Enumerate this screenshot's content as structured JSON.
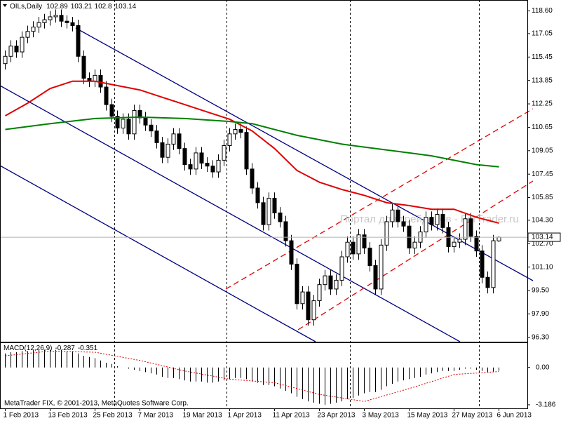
{
  "chart_data": [
    {
      "type": "candlestick",
      "symbol": "OILs,Daily",
      "categories": [
        "1 Feb 2013",
        null,
        null,
        null,
        null,
        null,
        null,
        null,
        "13 Feb 2013",
        null,
        null,
        null,
        null,
        null,
        null,
        null,
        "25 Feb 2013",
        null,
        null,
        null,
        null,
        null,
        null,
        null,
        "7 Mar 2013",
        null,
        null,
        null,
        null,
        null,
        null,
        null,
        "19 Mar 2013",
        null,
        null,
        null,
        null,
        null,
        null,
        null,
        "1 Apr 2013",
        null,
        null,
        null,
        null,
        null,
        null,
        null,
        "11 Apr 2013",
        null,
        null,
        null,
        null,
        null,
        null,
        null,
        "23 Apr 2013",
        null,
        null,
        null,
        null,
        null,
        null,
        null,
        "3 May 2013",
        null,
        null,
        null,
        null,
        null,
        null,
        null,
        "15 May 2013",
        null,
        null,
        null,
        null,
        null,
        null,
        null,
        "27 May 2013",
        null,
        null,
        null,
        null,
        null,
        null,
        null,
        "6 Jun 2013"
      ],
      "open": [
        115.0,
        115.5,
        116.2,
        115.8,
        116.8,
        117.2,
        117.5,
        117.8,
        118.0,
        118.2,
        118.3,
        117.9,
        117.8,
        117.6,
        115.5,
        114.0,
        113.8,
        114.2,
        113.4,
        112.2,
        111.4,
        110.6,
        111.2,
        110.2,
        111.8,
        111.3,
        110.8,
        110.4,
        109.6,
        108.6,
        109.5,
        110.2,
        109.2,
        108.1,
        107.8,
        108.9,
        108.2,
        108.0,
        107.6,
        108.4,
        109.4,
        110.2,
        110.5,
        110.3,
        107.8,
        106.5,
        105.5,
        104.0,
        105.8,
        104.8,
        104.2,
        102.9,
        101.3,
        98.6,
        99.4,
        97.5,
        98.8,
        99.9,
        100.5,
        99.6,
        100.2,
        101.8,
        102.8,
        102.0,
        103.3,
        102.4,
        101.2,
        99.6,
        102.6,
        104.2,
        105.0,
        104.2,
        103.9,
        102.4,
        102.8,
        103.5,
        104.5,
        104.0,
        104.7,
        103.8,
        102.5,
        102.8,
        103.0,
        104.4,
        103.2,
        102.2,
        100.4,
        99.7,
        102.89
      ],
      "high": [
        115.9,
        116.6,
        116.6,
        117.2,
        117.6,
        117.9,
        118.2,
        118.4,
        118.6,
        118.7,
        118.7,
        118.3,
        118.2,
        118.0,
        115.9,
        114.4,
        114.6,
        114.6,
        113.8,
        112.6,
        111.8,
        111.6,
        111.6,
        112.2,
        112.2,
        111.7,
        111.2,
        110.8,
        110.0,
        109.9,
        110.6,
        110.6,
        109.6,
        108.5,
        109.3,
        109.3,
        108.6,
        108.4,
        108.8,
        109.8,
        110.6,
        110.9,
        110.9,
        110.7,
        108.2,
        106.9,
        105.9,
        106.2,
        106.2,
        105.2,
        104.6,
        103.3,
        101.7,
        99.8,
        99.8,
        99.2,
        100.3,
        100.9,
        100.9,
        100.6,
        102.2,
        103.2,
        103.2,
        103.7,
        103.7,
        102.8,
        101.6,
        103.0,
        104.6,
        105.4,
        105.4,
        104.6,
        104.3,
        103.2,
        103.9,
        104.9,
        104.9,
        105.1,
        105.1,
        104.2,
        103.2,
        103.4,
        104.8,
        104.8,
        103.6,
        102.6,
        100.8,
        103.3,
        103.21
      ],
      "low": [
        114.6,
        115.1,
        115.4,
        115.4,
        116.4,
        116.8,
        117.1,
        117.4,
        117.6,
        117.8,
        117.5,
        117.4,
        117.2,
        115.1,
        113.6,
        113.4,
        113.4,
        113.0,
        111.8,
        111.0,
        110.2,
        110.2,
        109.8,
        109.8,
        110.9,
        110.4,
        110.0,
        109.2,
        108.2,
        108.2,
        109.1,
        108.8,
        107.7,
        107.4,
        107.4,
        107.8,
        107.6,
        107.2,
        107.2,
        108.0,
        109.0,
        109.8,
        109.9,
        107.4,
        106.1,
        105.1,
        103.6,
        103.6,
        104.4,
        103.8,
        102.5,
        100.9,
        98.2,
        98.2,
        97.1,
        97.1,
        98.4,
        99.5,
        99.2,
        99.2,
        99.8,
        101.4,
        101.6,
        101.6,
        102.0,
        100.8,
        99.2,
        99.2,
        102.2,
        103.8,
        103.8,
        103.5,
        102.0,
        102.0,
        102.4,
        103.1,
        103.6,
        103.6,
        103.4,
        102.1,
        102.1,
        102.4,
        102.6,
        102.8,
        101.8,
        100.0,
        99.3,
        99.3,
        102.8
      ],
      "close": [
        115.5,
        116.2,
        115.8,
        116.8,
        117.2,
        117.5,
        117.8,
        118.0,
        118.2,
        118.3,
        117.9,
        117.8,
        117.6,
        115.5,
        114.0,
        113.8,
        114.2,
        113.4,
        112.2,
        111.4,
        110.6,
        111.2,
        110.2,
        111.8,
        111.3,
        110.8,
        110.4,
        109.6,
        108.6,
        109.5,
        110.2,
        109.2,
        108.1,
        107.8,
        108.9,
        108.2,
        108.0,
        107.6,
        108.4,
        109.4,
        110.2,
        110.5,
        110.3,
        107.8,
        106.5,
        105.5,
        104.0,
        105.8,
        104.8,
        104.2,
        102.9,
        101.3,
        98.6,
        99.4,
        97.5,
        98.8,
        99.9,
        100.5,
        99.6,
        100.2,
        101.8,
        102.8,
        102.0,
        103.3,
        102.4,
        101.2,
        99.6,
        102.6,
        104.2,
        105.0,
        104.2,
        103.9,
        102.4,
        102.8,
        103.5,
        104.5,
        104.0,
        104.7,
        103.8,
        102.5,
        102.8,
        103.0,
        104.4,
        103.2,
        102.2,
        100.4,
        99.7,
        102.9,
        103.14
      ],
      "ylim": [
        96.0,
        119.3
      ],
      "yticks": [
        {
          "value": 118.6,
          "label": "118.60"
        },
        {
          "value": 117.05,
          "label": "117.05"
        },
        {
          "value": 115.45,
          "label": "115.45"
        },
        {
          "value": 113.85,
          "label": "113.85"
        },
        {
          "value": 112.25,
          "label": "112.25"
        },
        {
          "value": 110.65,
          "label": "110.65"
        },
        {
          "value": 109.05,
          "label": "109.05"
        },
        {
          "value": 107.45,
          "label": "107.45"
        },
        {
          "value": 105.85,
          "label": "105.85"
        },
        {
          "value": 104.3,
          "label": "104.30"
        },
        {
          "value": 102.7,
          "label": "102.70"
        },
        {
          "value": 101.1,
          "label": "101.10"
        },
        {
          "value": 99.5,
          "label": "99.50"
        },
        {
          "value": 97.9,
          "label": "97.90"
        },
        {
          "value": 96.3,
          "label": "96.30"
        }
      ],
      "bull_color": "#ffffff",
      "bear_color": "#000000",
      "moving_averages": [
        {
          "color": "#e00000",
          "x": [
            0,
            4,
            8,
            12,
            16,
            20,
            24,
            28,
            32,
            36,
            40,
            44,
            48,
            52,
            56,
            60,
            64,
            68,
            72,
            76,
            80,
            84,
            88
          ],
          "values": [
            111.44,
            112.3,
            113.3,
            113.8,
            113.8,
            113.5,
            113.2,
            112.7,
            112.2,
            111.7,
            111.2,
            110.4,
            109.2,
            107.7,
            106.9,
            106.4,
            106.0,
            105.5,
            105.3,
            105.05,
            105.05,
            104.5,
            104.1
          ]
        },
        {
          "color": "#008000",
          "x": [
            0,
            8,
            16,
            24,
            32,
            40,
            44,
            48,
            52,
            56,
            60,
            64,
            68,
            72,
            76,
            80,
            84,
            88
          ],
          "values": [
            110.5,
            110.9,
            111.25,
            111.35,
            111.25,
            111.05,
            110.9,
            110.5,
            110.1,
            109.8,
            109.5,
            109.3,
            109.1,
            108.9,
            108.7,
            108.4,
            108.1,
            107.95
          ]
        }
      ],
      "watermark": "Портал для трейдеров - ForTrader.ru",
      "copyright": "MetaTrader FIX, © 2001-2013, MetaQuotes Software Corp."
    },
    {
      "type": "macd",
      "name": "MACD(12,26,9)",
      "histogram": [
        1.2,
        1.3,
        1.3,
        1.4,
        1.4,
        1.5,
        1.5,
        1.5,
        1.5,
        1.5,
        1.5,
        1.4,
        1.4,
        1.2,
        1.0,
        0.9,
        0.8,
        0.6,
        0.4,
        0.3,
        0.1,
        0.0,
        -0.1,
        -0.2,
        -0.3,
        -0.4,
        -0.5,
        -0.6,
        -0.8,
        -0.9,
        -0.9,
        -1.0,
        -1.1,
        -1.2,
        -1.2,
        -1.2,
        -1.3,
        -1.3,
        -1.2,
        -1.1,
        -1.0,
        -0.9,
        -0.9,
        -1.0,
        -1.2,
        -1.3,
        -1.5,
        -1.5,
        -1.6,
        -1.8,
        -2.0,
        -2.2,
        -2.5,
        -2.7,
        -2.9,
        -3.0,
        -3.1,
        -3.186,
        -3.1,
        -3.0,
        -2.9,
        -2.7,
        -2.6,
        -2.4,
        -2.2,
        -2.1,
        -2.1,
        -1.9,
        -1.6,
        -1.4,
        -1.2,
        -1.1,
        -1.0,
        -0.9,
        -0.8,
        -0.6,
        -0.5,
        -0.4,
        -0.3,
        -0.3,
        -0.3,
        -0.2,
        -0.1,
        -0.1,
        -0.2,
        -0.3,
        -0.4,
        -0.35,
        -0.287
      ],
      "signal": {
        "x": [
          0,
          8,
          16,
          24,
          32,
          40,
          48,
          56,
          64,
          72,
          80,
          88
        ],
        "values": [
          1.0,
          1.4,
          1.3,
          0.6,
          -0.3,
          -1.0,
          -1.3,
          -2.3,
          -2.9,
          -1.8,
          -0.6,
          -0.351
        ]
      },
      "color": "#000000",
      "signal_color": "#e00000",
      "ylim": [
        -3.49,
        2.08
      ],
      "yticks": [
        {
          "value": 0,
          "label": "0.00"
        },
        -3.186
      ]
    }
  ]
}
